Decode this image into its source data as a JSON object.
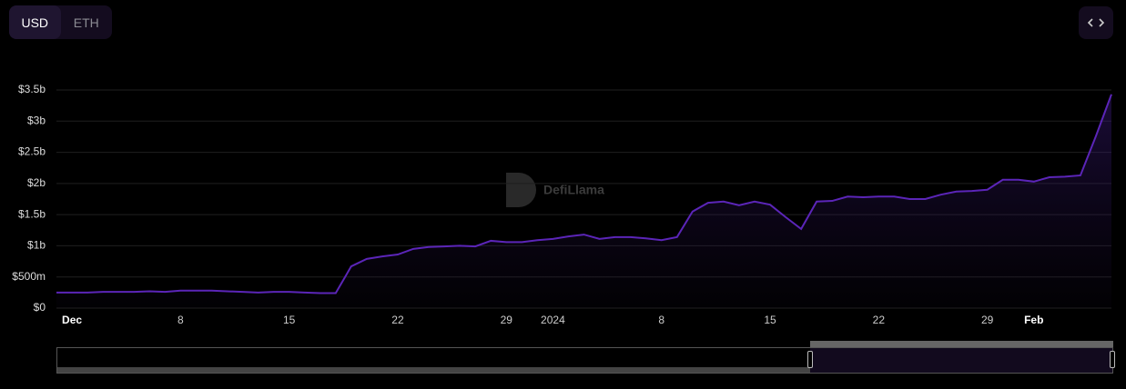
{
  "controls": {
    "currency_options": [
      "USD",
      "ETH"
    ]
  },
  "watermark": "DefiLlama",
  "chart_data": {
    "type": "area",
    "x": [
      "2023-11-30",
      "2023-12-01",
      "2023-12-02",
      "2023-12-03",
      "2023-12-04",
      "2023-12-05",
      "2023-12-06",
      "2023-12-07",
      "2023-12-08",
      "2023-12-09",
      "2023-12-10",
      "2023-12-11",
      "2023-12-12",
      "2023-12-13",
      "2023-12-14",
      "2023-12-15",
      "2023-12-16",
      "2023-12-17",
      "2023-12-18",
      "2023-12-19",
      "2023-12-20",
      "2023-12-21",
      "2023-12-22",
      "2023-12-23",
      "2023-12-24",
      "2023-12-25",
      "2023-12-26",
      "2023-12-27",
      "2023-12-28",
      "2023-12-29",
      "2023-12-30",
      "2023-12-31",
      "2024-01-01",
      "2024-01-02",
      "2024-01-03",
      "2024-01-04",
      "2024-01-05",
      "2024-01-06",
      "2024-01-07",
      "2024-01-08",
      "2024-01-09",
      "2024-01-10",
      "2024-01-11",
      "2024-01-12",
      "2024-01-13",
      "2024-01-14",
      "2024-01-15",
      "2024-01-16",
      "2024-01-17",
      "2024-01-18",
      "2024-01-19",
      "2024-01-20",
      "2024-01-21",
      "2024-01-22",
      "2024-01-23",
      "2024-01-24",
      "2024-01-25",
      "2024-01-26",
      "2024-01-27",
      "2024-01-28",
      "2024-01-29",
      "2024-01-30",
      "2024-01-31",
      "2024-02-01",
      "2024-02-02",
      "2024-02-03",
      "2024-02-04",
      "2024-02-05",
      "2024-02-06"
    ],
    "series": [
      {
        "color": "#5b25b8",
        "values": [
          0.25,
          0.25,
          0.25,
          0.26,
          0.26,
          0.26,
          0.27,
          0.26,
          0.28,
          0.28,
          0.28,
          0.27,
          0.26,
          0.25,
          0.26,
          0.26,
          0.25,
          0.24,
          0.24,
          0.67,
          0.79,
          0.83,
          0.86,
          0.95,
          0.98,
          0.99,
          1.0,
          0.99,
          1.08,
          1.06,
          1.06,
          1.09,
          1.11,
          1.15,
          1.18,
          1.11,
          1.14,
          1.14,
          1.12,
          1.09,
          1.14,
          1.55,
          1.69,
          1.71,
          1.65,
          1.71,
          1.66,
          1.46,
          1.27,
          1.71,
          1.72,
          1.79,
          1.78,
          1.79,
          1.79,
          1.75,
          1.75,
          1.82,
          1.87,
          1.88,
          1.9,
          2.06,
          2.06,
          2.03,
          2.1,
          2.11,
          2.13,
          2.76,
          3.43
        ]
      }
    ],
    "xlim": [
      "2023-11-30",
      "2024-02-06"
    ],
    "xticks": [
      {
        "value": "2023-12-01",
        "label": "Dec"
      },
      {
        "value": "2023-12-08",
        "label": "8"
      },
      {
        "value": "2023-12-15",
        "label": "15"
      },
      {
        "value": "2023-12-22",
        "label": "22"
      },
      {
        "value": "2023-12-29",
        "label": "29"
      },
      {
        "value": "2024-01-01",
        "label": "2024"
      },
      {
        "value": "2024-01-08",
        "label": "8"
      },
      {
        "value": "2024-01-15",
        "label": "15"
      },
      {
        "value": "2024-01-22",
        "label": "22"
      },
      {
        "value": "2024-01-29",
        "label": "29"
      },
      {
        "value": "2024-02-01",
        "label": "Feb"
      }
    ],
    "ylim": [
      0,
      3.5
    ],
    "yticks": [
      {
        "value": 0,
        "label": "$0"
      },
      {
        "value": 0.5,
        "label": "$500m"
      },
      {
        "value": 1,
        "label": "$1b"
      },
      {
        "value": 1.5,
        "label": "$1.5b"
      },
      {
        "value": 2,
        "label": "$2b"
      },
      {
        "value": 2.5,
        "label": "$2.5b"
      },
      {
        "value": 3,
        "label": "$3b"
      },
      {
        "value": 3.5,
        "label": "$3.5b"
      }
    ],
    "grid": true
  }
}
